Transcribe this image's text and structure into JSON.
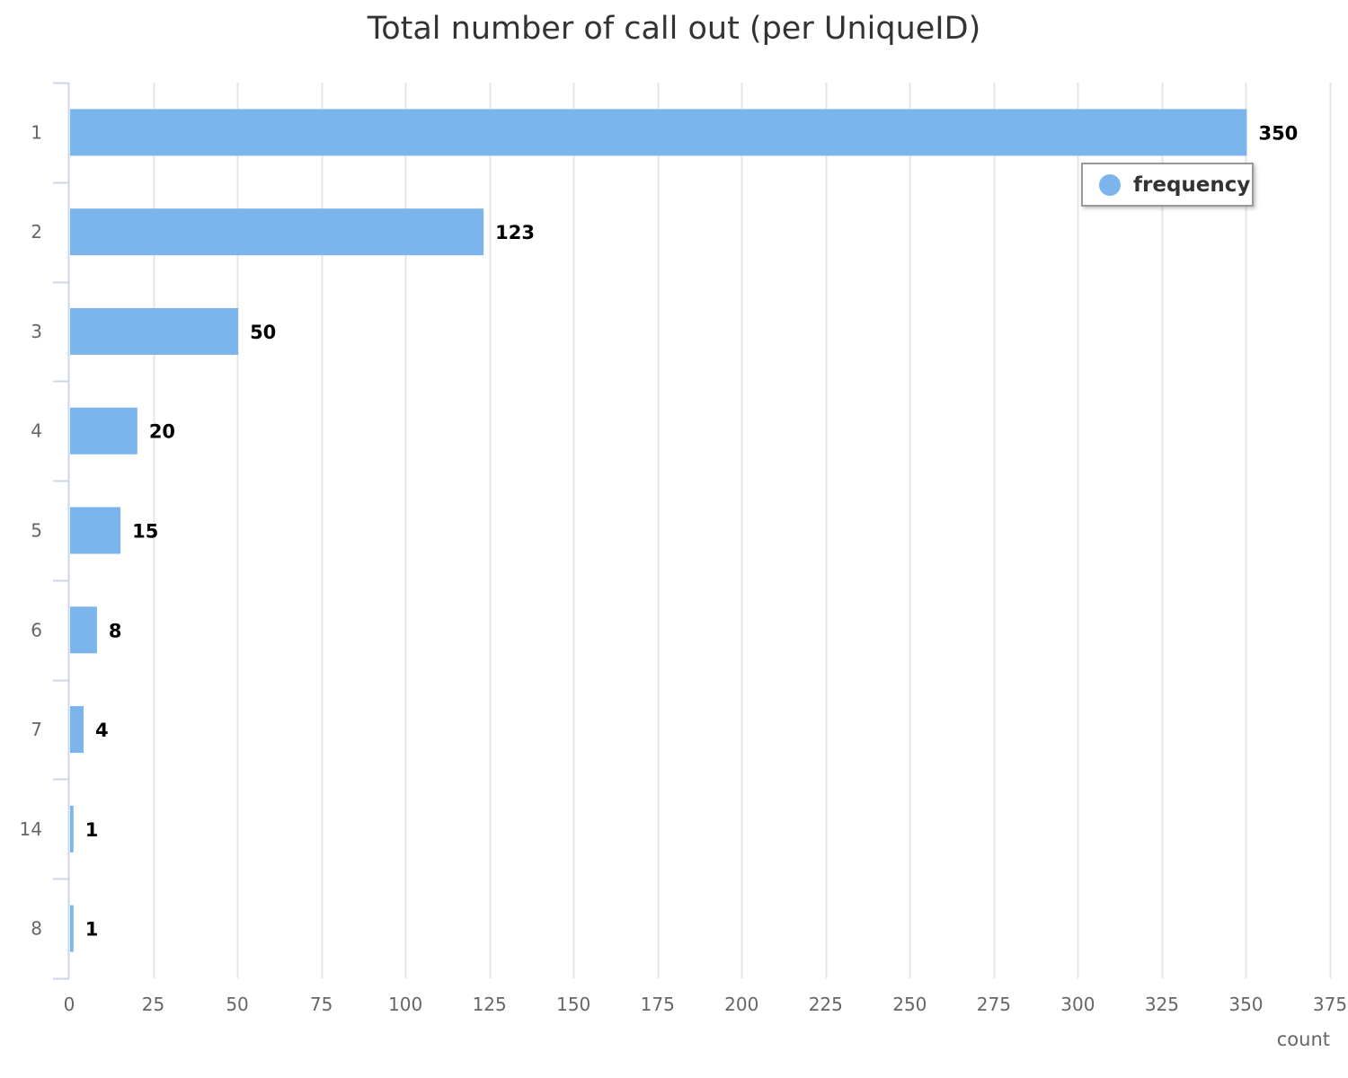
{
  "chart_data": {
    "type": "bar",
    "orientation": "horizontal",
    "title": "Total number of call out (per UniqueID)",
    "categories": [
      "1",
      "2",
      "3",
      "4",
      "5",
      "6",
      "7",
      "14",
      "8"
    ],
    "series": [
      {
        "name": "frequency",
        "values": [
          350,
          123,
          50,
          20,
          15,
          8,
          4,
          1,
          1
        ],
        "color": "#7cb5ec"
      }
    ],
    "xlabel": "count",
    "ylabel": "",
    "xlim": [
      0,
      375
    ],
    "x_ticks": [
      0,
      25,
      50,
      75,
      100,
      125,
      150,
      175,
      200,
      225,
      250,
      275,
      300,
      325,
      350,
      375
    ],
    "grid": true,
    "legend": {
      "position": "top-right",
      "symbol": "circle"
    },
    "data_labels": true
  }
}
